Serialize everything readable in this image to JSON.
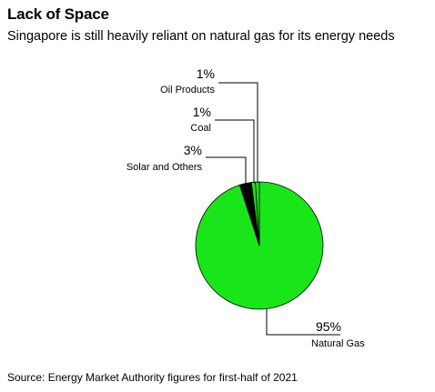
{
  "title": "Lack of Space",
  "subtitle": "Singapore is still heavily reliant on natural gas for its energy needs",
  "source": "Source: Energy Market Authority figures for first-half of 2021",
  "chart_data": {
    "type": "pie",
    "slices": [
      {
        "label": "Natural Gas",
        "value": 95,
        "value_label": "95%",
        "color": "#19e619"
      },
      {
        "label": "Solar and Others",
        "value": 3,
        "value_label": "3%",
        "color": "#000000"
      },
      {
        "label": "Coal",
        "value": 1,
        "value_label": "1%",
        "color": "#19e619"
      },
      {
        "label": "Oil Products",
        "value": 1,
        "value_label": "1%",
        "color": "#19e619"
      }
    ]
  }
}
